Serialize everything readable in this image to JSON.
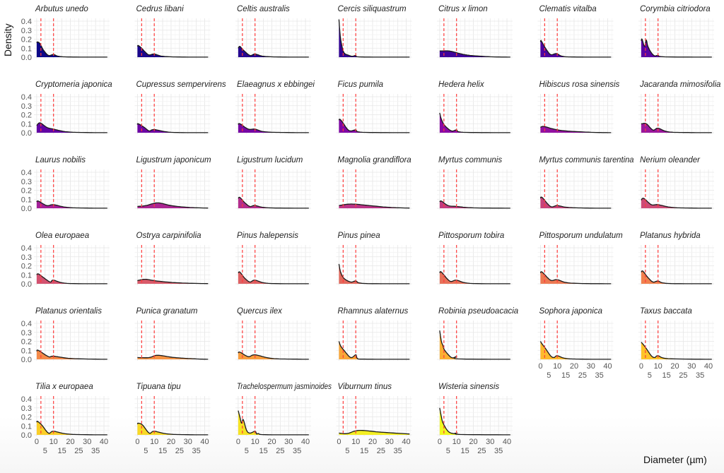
{
  "chart_data": {
    "type": "area",
    "title": "",
    "xlabel": "Diameter (µm)",
    "ylabel": "Density",
    "xlim": [
      0,
      42
    ],
    "ylim": [
      0,
      0.4
    ],
    "x_ticks": [
      "0",
      "5",
      "10",
      "15",
      "20",
      "25",
      "30",
      "35",
      "40"
    ],
    "y_ticks": [
      "0.0",
      "0.1",
      "0.2",
      "0.3",
      "0.4"
    ],
    "reference_lines_x": [
      2.5,
      10
    ],
    "reference_line_color": "#ff3b3b",
    "grid": true,
    "palette": [
      "#0d0887",
      "#5402a3",
      "#8b0aa5",
      "#b93289",
      "#db5c68",
      "#f48849",
      "#febd2a",
      "#f0f921"
    ],
    "panels": [
      {
        "name": "Arbutus unedo",
        "points": [
          [
            0,
            0.16
          ],
          [
            0.5,
            0.17
          ],
          [
            2,
            0.15
          ],
          [
            4,
            0.08
          ],
          [
            7,
            0.02
          ],
          [
            10,
            0.03
          ],
          [
            13,
            0.01
          ],
          [
            20,
            0.002
          ]
        ]
      },
      {
        "name": "Cedrus libani",
        "points": [
          [
            0,
            0.12
          ],
          [
            0.5,
            0.13
          ],
          [
            2.5,
            0.1
          ],
          [
            5,
            0.05
          ],
          [
            7,
            0.025
          ],
          [
            10,
            0.035
          ],
          [
            15,
            0.01
          ],
          [
            25,
            0.002
          ]
        ]
      },
      {
        "name": "Celtis australis",
        "points": [
          [
            0,
            0.1
          ],
          [
            1,
            0.12
          ],
          [
            3,
            0.08
          ],
          [
            7,
            0.02
          ],
          [
            10,
            0.035
          ],
          [
            15,
            0.01
          ],
          [
            25,
            0.002
          ]
        ]
      },
      {
        "name": "Cercis siliquastrum",
        "points": [
          [
            0,
            0.42
          ],
          [
            0.7,
            0.25
          ],
          [
            1.5,
            0.15
          ],
          [
            3,
            0.05
          ],
          [
            6,
            0.02
          ],
          [
            8,
            0.01
          ],
          [
            10,
            0.02
          ],
          [
            11,
            0.005
          ],
          [
            20,
            0.001
          ]
        ]
      },
      {
        "name": "Citrus x limon",
        "points": [
          [
            0,
            0.07
          ],
          [
            2,
            0.07
          ],
          [
            5,
            0.07
          ],
          [
            8,
            0.06
          ],
          [
            12,
            0.04
          ],
          [
            18,
            0.02
          ],
          [
            30,
            0.005
          ]
        ]
      },
      {
        "name": "Clematis vitalba",
        "points": [
          [
            0,
            0.17
          ],
          [
            0.5,
            0.18
          ],
          [
            3,
            0.1
          ],
          [
            6,
            0.03
          ],
          [
            9.5,
            0.04
          ],
          [
            13,
            0.01
          ],
          [
            20,
            0.002
          ]
        ]
      },
      {
        "name": "Corymbia citriodora",
        "points": [
          [
            0,
            0.18
          ],
          [
            0.5,
            0.2
          ],
          [
            2,
            0.12
          ],
          [
            3,
            0.19
          ],
          [
            4,
            0.12
          ],
          [
            6,
            0.05
          ],
          [
            8,
            0.015
          ],
          [
            10,
            0.02
          ],
          [
            14,
            0.004
          ]
        ]
      },
      {
        "name": "Cryptomeria japonica",
        "points": [
          [
            0,
            0.08
          ],
          [
            2,
            0.11
          ],
          [
            6,
            0.06
          ],
          [
            10,
            0.04
          ],
          [
            18,
            0.01
          ],
          [
            30,
            0.002
          ]
        ]
      },
      {
        "name": "Cupressus sempervirens",
        "points": [
          [
            0,
            0.09
          ],
          [
            0.5,
            0.1
          ],
          [
            4,
            0.06
          ],
          [
            7,
            0.02
          ],
          [
            10,
            0.035
          ],
          [
            20,
            0.005
          ]
        ]
      },
      {
        "name": "Elaeagnus x ebbingei",
        "points": [
          [
            0,
            0.09
          ],
          [
            1,
            0.1
          ],
          [
            6,
            0.04
          ],
          [
            10,
            0.04
          ],
          [
            16,
            0.01
          ],
          [
            30,
            0.002
          ]
        ]
      },
      {
        "name": "Ficus pumila",
        "points": [
          [
            0,
            0.14
          ],
          [
            0.5,
            0.15
          ],
          [
            2,
            0.12
          ],
          [
            5,
            0.04
          ],
          [
            7,
            0.02
          ],
          [
            10,
            0.03
          ],
          [
            14,
            0.005
          ]
        ]
      },
      {
        "name": "Hedera helix",
        "points": [
          [
            0,
            0.22
          ],
          [
            1,
            0.15
          ],
          [
            3,
            0.08
          ],
          [
            7,
            0.02
          ],
          [
            10,
            0.03
          ],
          [
            14,
            0.005
          ]
        ]
      },
      {
        "name": "Hibiscus rosa sinensis",
        "points": [
          [
            0,
            0.06
          ],
          [
            2,
            0.07
          ],
          [
            8,
            0.04
          ],
          [
            15,
            0.02
          ],
          [
            30,
            0.005
          ]
        ]
      },
      {
        "name": "Jacaranda mimosifolia",
        "points": [
          [
            0,
            0.1
          ],
          [
            0.5,
            0.1
          ],
          [
            3,
            0.1
          ],
          [
            7,
            0.03
          ],
          [
            10,
            0.05
          ],
          [
            16,
            0.01
          ],
          [
            28,
            0.002
          ]
        ]
      },
      {
        "name": "Laurus nobilis",
        "points": [
          [
            0,
            0.07
          ],
          [
            1,
            0.08
          ],
          [
            6,
            0.03
          ],
          [
            10,
            0.04
          ],
          [
            18,
            0.01
          ],
          [
            30,
            0.002
          ]
        ]
      },
      {
        "name": "Ligustrum japonicum",
        "points": [
          [
            0,
            0.02
          ],
          [
            5,
            0.03
          ],
          [
            12,
            0.06
          ],
          [
            20,
            0.03
          ],
          [
            30,
            0.01
          ],
          [
            42,
            0.002
          ]
        ]
      },
      {
        "name": "Ligustrum lucidum",
        "points": [
          [
            0,
            0.11
          ],
          [
            1,
            0.12
          ],
          [
            4,
            0.06
          ],
          [
            7,
            0.02
          ],
          [
            10,
            0.03
          ],
          [
            18,
            0.005
          ]
        ]
      },
      {
        "name": "Magnolia grandiflora",
        "points": [
          [
            0,
            0.03
          ],
          [
            5,
            0.045
          ],
          [
            10,
            0.045
          ],
          [
            18,
            0.03
          ],
          [
            30,
            0.01
          ],
          [
            42,
            0.002
          ]
        ]
      },
      {
        "name": "Myrtus communis",
        "points": [
          [
            0,
            0.07
          ],
          [
            1,
            0.08
          ],
          [
            5,
            0.03
          ],
          [
            10,
            0.02
          ],
          [
            20,
            0.005
          ]
        ]
      },
      {
        "name": "Myrtus communis tarentina",
        "points": [
          [
            0,
            0.11
          ],
          [
            1,
            0.12
          ],
          [
            6,
            0.02
          ],
          [
            10,
            0.03
          ],
          [
            16,
            0.01
          ],
          [
            28,
            0.002
          ]
        ]
      },
      {
        "name": "Nerium oleander",
        "points": [
          [
            0,
            0.09
          ],
          [
            1.5,
            0.11
          ],
          [
            6,
            0.04
          ],
          [
            10,
            0.04
          ],
          [
            18,
            0.01
          ],
          [
            30,
            0.002
          ]
        ]
      },
      {
        "name": "Olea europaea",
        "points": [
          [
            0,
            0.1
          ],
          [
            1,
            0.11
          ],
          [
            4,
            0.07
          ],
          [
            8,
            0.02
          ],
          [
            10,
            0.04
          ],
          [
            18,
            0.005
          ]
        ]
      },
      {
        "name": "Ostrya carpinifolia",
        "points": [
          [
            0,
            0.035
          ],
          [
            1,
            0.04
          ],
          [
            5,
            0.05
          ],
          [
            12,
            0.03
          ],
          [
            25,
            0.01
          ],
          [
            42,
            0.002
          ]
        ]
      },
      {
        "name": "Pinus halepensis",
        "points": [
          [
            0,
            0.12
          ],
          [
            1,
            0.13
          ],
          [
            4,
            0.06
          ],
          [
            7,
            0.02
          ],
          [
            10,
            0.04
          ],
          [
            18,
            0.005
          ]
        ]
      },
      {
        "name": "Pinus pinea",
        "points": [
          [
            0,
            0.22
          ],
          [
            1,
            0.13
          ],
          [
            3,
            0.06
          ],
          [
            7,
            0.02
          ],
          [
            10,
            0.03
          ],
          [
            15,
            0.004
          ]
        ]
      },
      {
        "name": "Pittosporum tobira",
        "points": [
          [
            0,
            0.12
          ],
          [
            1,
            0.13
          ],
          [
            6,
            0.03
          ],
          [
            10,
            0.04
          ],
          [
            18,
            0.005
          ]
        ]
      },
      {
        "name": "Pittosporum undulatum",
        "points": [
          [
            0,
            0.12
          ],
          [
            1,
            0.13
          ],
          [
            6,
            0.04
          ],
          [
            10,
            0.045
          ],
          [
            18,
            0.008
          ]
        ]
      },
      {
        "name": "Platanus hybrida",
        "points": [
          [
            0,
            0.13
          ],
          [
            1,
            0.14
          ],
          [
            4,
            0.07
          ],
          [
            7,
            0.02
          ],
          [
            10,
            0.03
          ],
          [
            16,
            0.004
          ]
        ]
      },
      {
        "name": "Platanus orientalis",
        "points": [
          [
            0,
            0.09
          ],
          [
            1,
            0.1
          ],
          [
            7,
            0.03
          ],
          [
            10,
            0.035
          ],
          [
            20,
            0.01
          ],
          [
            35,
            0.002
          ]
        ]
      },
      {
        "name": "Punica granatum",
        "points": [
          [
            0,
            0.02
          ],
          [
            7,
            0.02
          ],
          [
            12,
            0.045
          ],
          [
            22,
            0.02
          ],
          [
            35,
            0.005
          ]
        ]
      },
      {
        "name": "Quercus ilex",
        "points": [
          [
            0,
            0.07
          ],
          [
            1,
            0.08
          ],
          [
            6,
            0.03
          ],
          [
            10,
            0.05
          ],
          [
            20,
            0.01
          ],
          [
            35,
            0.002
          ]
        ]
      },
      {
        "name": "Rhamnus alaternus",
        "points": [
          [
            0,
            0.2
          ],
          [
            1,
            0.15
          ],
          [
            3,
            0.1
          ],
          [
            7,
            0.02
          ],
          [
            10,
            0.05
          ],
          [
            11,
            0.01
          ],
          [
            15,
            0.002
          ]
        ]
      },
      {
        "name": "Robinia pseudoacacia",
        "points": [
          [
            0,
            0.32
          ],
          [
            1,
            0.2
          ],
          [
            2,
            0.15
          ],
          [
            3,
            0.1
          ],
          [
            7,
            0.02
          ],
          [
            10,
            0.03
          ],
          [
            11,
            0.005
          ]
        ]
      },
      {
        "name": "Sophora japonica",
        "points": [
          [
            0,
            0.2
          ],
          [
            1,
            0.17
          ],
          [
            3,
            0.12
          ],
          [
            6,
            0.04
          ],
          [
            8,
            0.02
          ],
          [
            10,
            0.04
          ],
          [
            15,
            0.01
          ],
          [
            25,
            0.002
          ]
        ]
      },
      {
        "name": "Taxus baccata",
        "points": [
          [
            0,
            0.19
          ],
          [
            1,
            0.17
          ],
          [
            3,
            0.12
          ],
          [
            6,
            0.04
          ],
          [
            8,
            0.02
          ],
          [
            10,
            0.04
          ],
          [
            16,
            0.008
          ]
        ]
      },
      {
        "name": "Tilia x europaea",
        "points": [
          [
            0,
            0.14
          ],
          [
            0.5,
            0.15
          ],
          [
            3,
            0.11
          ],
          [
            7,
            0.02
          ],
          [
            10,
            0.04
          ],
          [
            18,
            0.01
          ],
          [
            30,
            0.002
          ]
        ]
      },
      {
        "name": "Tipuana tipu",
        "points": [
          [
            0,
            0.12
          ],
          [
            0.5,
            0.13
          ],
          [
            3,
            0.11
          ],
          [
            7,
            0.02
          ],
          [
            10,
            0.04
          ],
          [
            18,
            0.01
          ],
          [
            30,
            0.002
          ]
        ]
      },
      {
        "name": "Trachelospermum jasminoides",
        "points": [
          [
            0,
            0.27
          ],
          [
            1,
            0.2
          ],
          [
            2,
            0.13
          ],
          [
            3,
            0.17
          ],
          [
            5,
            0.05
          ],
          [
            7,
            0.02
          ],
          [
            10,
            0.04
          ],
          [
            11,
            0.01
          ],
          [
            12,
            0.015
          ],
          [
            16,
            0.002
          ]
        ]
      },
      {
        "name": "Viburnum tinus",
        "points": [
          [
            0,
            0.02
          ],
          [
            5,
            0.015
          ],
          [
            12,
            0.05
          ],
          [
            25,
            0.03
          ],
          [
            42,
            0.01
          ]
        ]
      },
      {
        "name": "Wisteria sinensis",
        "points": [
          [
            0,
            0.3
          ],
          [
            1,
            0.2
          ],
          [
            2,
            0.13
          ],
          [
            5,
            0.04
          ],
          [
            8,
            0.015
          ],
          [
            10,
            0.02
          ],
          [
            12,
            0.005
          ]
        ]
      }
    ]
  }
}
